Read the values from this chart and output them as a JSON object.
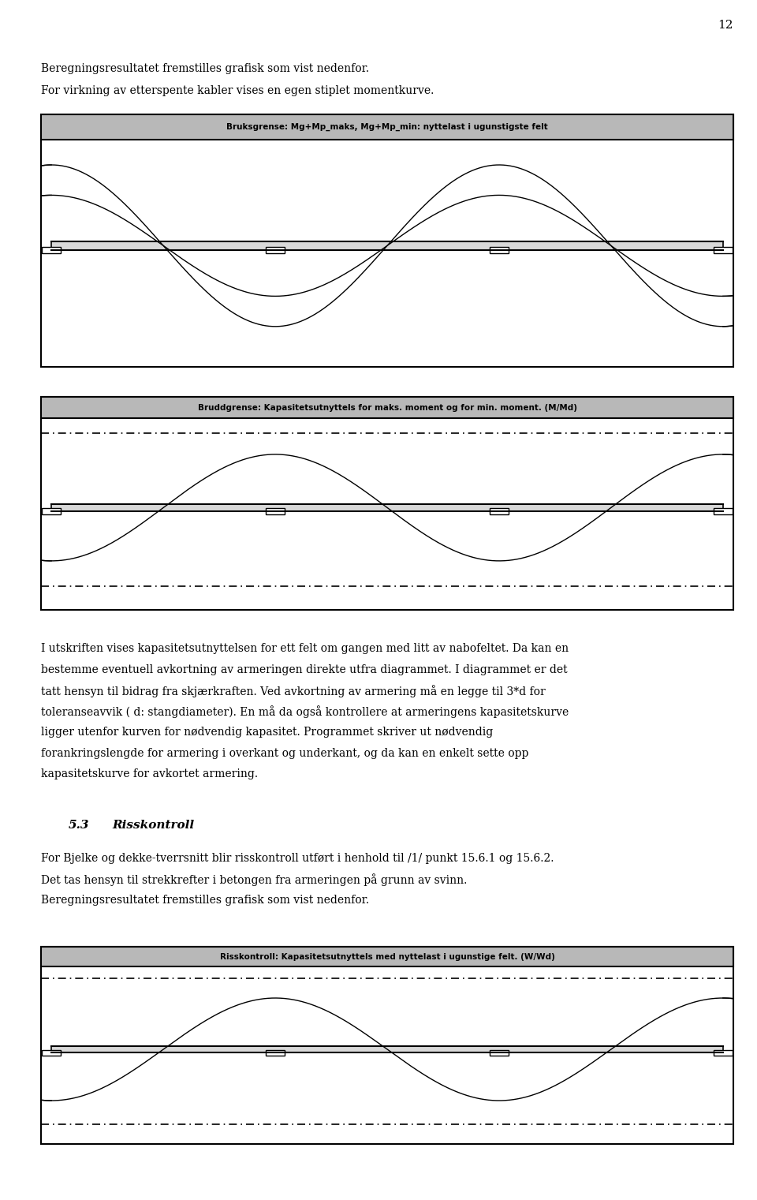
{
  "page_number": "12",
  "text_line1": "Beregningsresultatet fremstilles grafisk som vist nedenfor.",
  "text_line2": "For virkning av etterspente kabler vises en egen stiplet momentkurve.",
  "diagram1_title": "Bruksgrense: Mg+Mp_maks, Mg+Mp_min: nyttelast i ugunstigste felt",
  "diagram2_title": "Bruddgrense: Kapasitetsutnyttels for maks. moment og for min. moment. (M/Md)",
  "diagram3_title": "Risskontroll: Kapasitetsutnyttels med nyttelast i ugunstige felt. (W/Wd)",
  "body_text": [
    "I utskriften vises kapasitetsutnyttelsen for ett felt om gangen med litt av nabofeltet. Da kan en",
    "bestemme eventuell avkortning av armeringen direkte utfra diagrammet. I diagrammet er det",
    "tatt hensyn til bidrag fra skjærkraften. Ved avkortning av armering må en legge til 3*d for",
    "toleranseavvik ( d: stangdiameter). En må da også kontrollere at armeringens kapasitetskurve",
    "ligger utenfor kurven for nødvendig kapasitet. Programmet skriver ut nødvendig",
    "forankringslengde for armering i overkant og underkant, og da kan en enkelt sette opp",
    "kapasitetskurve for avkortet armering."
  ],
  "section_title": "5.3",
  "section_title2": "Risskontroll",
  "section_text": [
    "For Bjelke og dekke-tverrsnitt blir risskontroll utført i henhold til /1/ punkt 15.6.1 og 15.6.2.",
    "Det tas hensyn til strekkrefter i betongen fra armeringen på grunn av svinn.",
    "Beregningsresultatet fremstilles grafisk som vist nedenfor."
  ],
  "bg_color": "#ffffff",
  "title_bg": "#b8b8b8",
  "border_color": "#000000"
}
